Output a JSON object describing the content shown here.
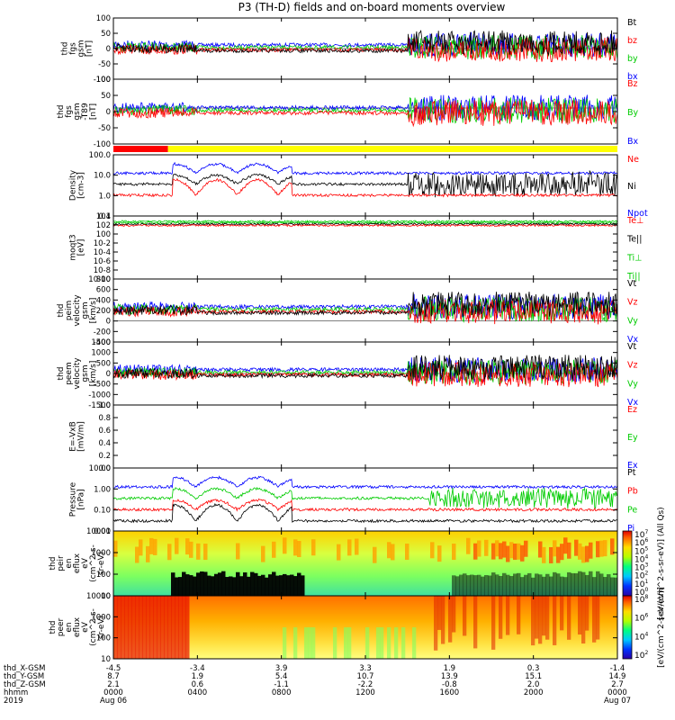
{
  "title": "P3 (TH-D) fields and on-board moments overview",
  "chart_data": [
    {
      "type": "line",
      "id": "fgs_gsm",
      "ylabel": [
        "thd",
        "fgs",
        "gsm",
        "[nT]"
      ],
      "ylim": [
        -100,
        100
      ],
      "yticks": [
        "100",
        "50",
        "0",
        "-50",
        "-100"
      ],
      "legend": [
        {
          "name": "Bt",
          "color": "#000000"
        },
        {
          "name": "bz",
          "color": "#ff0000"
        },
        {
          "name": "by",
          "color": "#00cc00"
        },
        {
          "name": "bx",
          "color": "#0000ff"
        }
      ]
    },
    {
      "type": "line",
      "id": "fgs_gsm_t89",
      "ylabel": [
        "thd",
        "fgs",
        "gsm",
        "-T89",
        "[nT]"
      ],
      "ylim": [
        -125,
        100
      ],
      "yticks": [
        "100",
        "50",
        "0",
        "-50",
        "-100"
      ],
      "legend": [
        {
          "name": "Bz",
          "color": "#ff0000"
        },
        {
          "name": "By",
          "color": "#00cc00"
        },
        {
          "name": "Bx",
          "color": "#0000ff"
        }
      ]
    },
    {
      "type": "line",
      "id": "density",
      "ylabel": [
        "Density",
        "[cm-3]"
      ],
      "scale": "log",
      "yticks": [
        "100.0",
        "10.0",
        "1.0",
        "0.1"
      ],
      "legend": [
        {
          "name": "Ne",
          "color": "#ff0000"
        },
        {
          "name": "Ni",
          "color": "#000000"
        },
        {
          "name": "Npot",
          "color": "#0000ff"
        }
      ]
    },
    {
      "type": "line",
      "id": "temp",
      "ylabel": [
        "moqt3",
        "[eV]"
      ],
      "scale": "log",
      "yticks": [
        "10^4",
        "10^2",
        "10^0",
        "10^-2",
        "10^-4",
        "10^-6",
        "10^-8",
        "10^-10"
      ],
      "legend": [
        {
          "name": "Te⊥",
          "color": "#ff0000"
        },
        {
          "name": "Te||",
          "color": "#000000"
        },
        {
          "name": "Ti⊥",
          "color": "#00cc00"
        },
        {
          "name": "Ti||",
          "color": "#00cc00"
        }
      ]
    },
    {
      "type": "line",
      "id": "peim_vel",
      "ylabel": [
        "thd",
        "peim",
        "velocity",
        "gsm",
        "[km/s]"
      ],
      "ylim": [
        -400,
        800
      ],
      "yticks": [
        "800",
        "600",
        "400",
        "200",
        "0",
        "-200",
        "-400"
      ],
      "legend": [
        {
          "name": "Vt",
          "color": "#000000"
        },
        {
          "name": "Vz",
          "color": "#ff0000"
        },
        {
          "name": "Vy",
          "color": "#00cc00"
        },
        {
          "name": "Vx",
          "color": "#0000ff"
        }
      ]
    },
    {
      "type": "line",
      "id": "peem_vel",
      "ylabel": [
        "thd",
        "peem",
        "velocity",
        "gsm",
        "[km/s]"
      ],
      "ylim": [
        -1500,
        1500
      ],
      "yticks": [
        "1500",
        "1000",
        "500",
        "0",
        "-500",
        "-1000",
        "-1500"
      ],
      "legend": [
        {
          "name": "Vt",
          "color": "#000000"
        },
        {
          "name": "Vz",
          "color": "#ff0000"
        },
        {
          "name": "Vy",
          "color": "#00cc00"
        },
        {
          "name": "Vx",
          "color": "#0000ff"
        }
      ]
    },
    {
      "type": "line",
      "id": "efield",
      "ylabel": [
        "E=-VxB",
        "[mV/m]"
      ],
      "ylim": [
        0,
        1
      ],
      "yticks": [
        "1.0",
        "0.8",
        "0.6",
        "0.4",
        "0.2",
        "0.0"
      ],
      "legend": [
        {
          "name": "Ez",
          "color": "#ff0000"
        },
        {
          "name": "Ey",
          "color": "#00cc00"
        },
        {
          "name": "Ex",
          "color": "#0000ff"
        }
      ]
    },
    {
      "type": "line",
      "id": "pressure",
      "ylabel": [
        "Pressure",
        "[nPa]"
      ],
      "scale": "log",
      "yticks": [
        "10.00",
        "1.00",
        "0.10",
        "0.01"
      ],
      "legend": [
        {
          "name": "Pt",
          "color": "#000000"
        },
        {
          "name": "Pb",
          "color": "#ff0000"
        },
        {
          "name": "Pe",
          "color": "#00cc00"
        },
        {
          "name": "Pi",
          "color": "#0000ff"
        }
      ]
    },
    {
      "type": "heatmap",
      "id": "peir",
      "ylabel": [
        "thd",
        "peir",
        "en",
        "eflux",
        "eV",
        "(cm^2-s-",
        "sr-eV)"
      ],
      "scale": "log",
      "yticks": [
        "10000",
        "1000",
        "100",
        "10"
      ],
      "colorbar": {
        "label": "[eV/(cm^2-s-sr-eV)] (All Qs)",
        "ticks": [
          "10^7",
          "10^6",
          "10^5",
          "10^4",
          "10^3",
          "10^2",
          "10^1",
          "10^0"
        ]
      }
    },
    {
      "type": "heatmap",
      "id": "peer",
      "ylabel": [
        "thd",
        "peer",
        "en",
        "eflux",
        "eV",
        "(cm^2-s-",
        "sr-eV)"
      ],
      "scale": "log",
      "yticks": [
        "10000",
        "1000",
        "100",
        "10"
      ],
      "colorbar": {
        "label": "[eV/(cm^2-s-sr-eV)]",
        "ticks": [
          "10^8",
          "10^6",
          "10^4",
          "10^2"
        ]
      }
    }
  ],
  "xaxis": {
    "row_labels": [
      "thd_X-GSM",
      "thd_Y-GSM",
      "thd_Z-GSM",
      "hhmm",
      "2019"
    ],
    "ticks": [
      {
        "x": "-4.5",
        "y": "8.7",
        "z": "2.1",
        "t": "0000",
        "d": "Aug 06"
      },
      {
        "x": "-3.4",
        "y": "1.9",
        "z": "0.6",
        "t": "0400",
        "d": ""
      },
      {
        "x": "3.9",
        "y": "5.4",
        "z": "-1.1",
        "t": "0800",
        "d": ""
      },
      {
        "x": "3.3",
        "y": "10.7",
        "z": "-2.2",
        "t": "1200",
        "d": ""
      },
      {
        "x": "1.9",
        "y": "13.9",
        "z": "-0.8",
        "t": "1600",
        "d": ""
      },
      {
        "x": "0.3",
        "y": "15.1",
        "z": "2.0",
        "t": "2000",
        "d": ""
      },
      {
        "x": "-1.4",
        "y": "14.9",
        "z": "2.7",
        "t": "0000",
        "d": "Aug 07"
      }
    ]
  },
  "mode_bar": {
    "colors": [
      "#ff0000",
      "#ffff00"
    ],
    "switch_hour": 2.6
  }
}
